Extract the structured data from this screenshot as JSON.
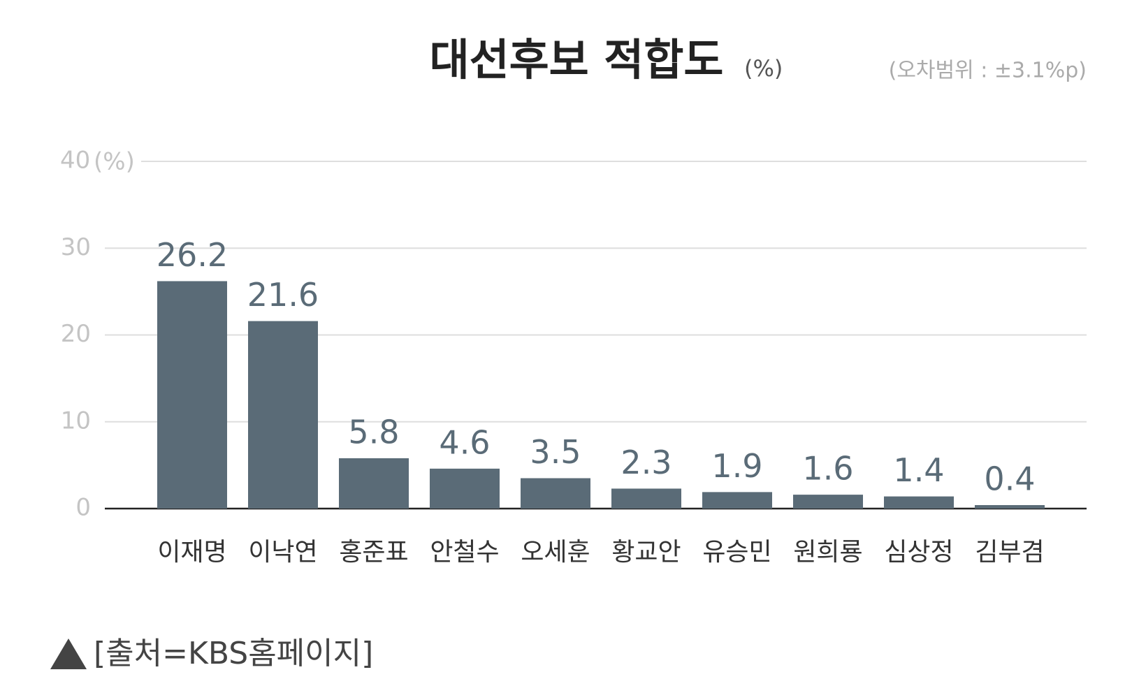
{
  "chart_data": {
    "type": "bar",
    "title": "대선후보 적합도",
    "title_unit": "(%)",
    "note": "(오차범위 : ±3.1%p)",
    "y_axis_label": "(%)",
    "categories": [
      "이재명",
      "이낙연",
      "홍준표",
      "안철수",
      "오세훈",
      "황교안",
      "유승민",
      "원희룡",
      "심상정",
      "김부겸"
    ],
    "values": [
      26.2,
      21.6,
      5.8,
      4.6,
      3.5,
      2.3,
      1.9,
      1.6,
      1.4,
      0.4
    ],
    "color": "#5a6b77",
    "ylim": [
      0,
      40
    ],
    "yticks": [
      0,
      10,
      20,
      30,
      40
    ],
    "grid": true,
    "source": "[출처=KBS홈페이지]"
  }
}
